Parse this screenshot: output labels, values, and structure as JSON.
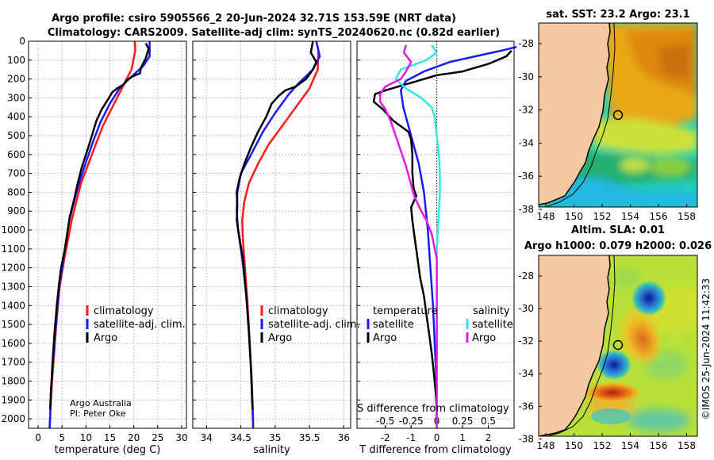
{
  "titles": {
    "line1": "Argo profile: csiro 5905566_2 20-Jun-2024 32.71S 153.59E (NRT data)",
    "line2": "Climatology: CARS2009. Satellite-adj clim: synTS_20240620.nc (0.82d earlier)"
  },
  "colors": {
    "climatology": "#ff1a1a",
    "satellite_adj": "#1a1aff",
    "argo": "#000000",
    "sat_t": "#33e6e6",
    "argo_s": "#e619e6",
    "land": "#f5c8a0"
  },
  "chart_data": [
    {
      "id": "temperature",
      "type": "line",
      "xlabel": "temperature (deg C)",
      "ylabel": "",
      "xlim": [
        -2,
        31
      ],
      "ylim": [
        2050,
        0
      ],
      "xticks": [
        0,
        5,
        10,
        15,
        20,
        25,
        30
      ],
      "xtick_labels": [
        "0",
        "5",
        "10",
        "15",
        "20",
        "25",
        "30"
      ],
      "yticks": [
        0,
        100,
        200,
        300,
        400,
        500,
        600,
        700,
        800,
        900,
        1000,
        1100,
        1200,
        1300,
        1400,
        1500,
        1600,
        1700,
        1800,
        1900,
        2000
      ],
      "ytick_labels": [
        "0",
        "100",
        "200",
        "300",
        "400",
        "500",
        "600",
        "700",
        "800",
        "900",
        "1000",
        "1100",
        "1200",
        "1300",
        "1400",
        "1500",
        "1600",
        "1700",
        "1800",
        "1900",
        "2000"
      ],
      "legend": [
        "climatology",
        "satellite-adj. clim.",
        "Argo"
      ],
      "notes": [
        "Argo Australia",
        "PI: Peter Oke"
      ],
      "series": [
        {
          "name": "climatology",
          "color": "#ff1a1a",
          "points": [
            [
              20.2,
              0
            ],
            [
              20.3,
              50
            ],
            [
              19.5,
              150
            ],
            [
              17.5,
              250
            ],
            [
              15.5,
              350
            ],
            [
              13.5,
              450
            ],
            [
              12,
              550
            ],
            [
              10.5,
              650
            ],
            [
              9,
              750
            ],
            [
              8,
              850
            ],
            [
              7,
              950
            ],
            [
              5.5,
              1150
            ],
            [
              4.5,
              1300
            ],
            [
              3.8,
              1500
            ],
            [
              3.2,
              1700
            ],
            [
              2.8,
              1850
            ],
            [
              2.5,
              2000
            ],
            [
              2.4,
              2050
            ]
          ]
        },
        {
          "name": "satellite-adj. clim.",
          "color": "#1a1aff",
          "points": [
            [
              23.3,
              0
            ],
            [
              23.3,
              80
            ],
            [
              22,
              130
            ],
            [
              19,
              200
            ],
            [
              17,
              250
            ],
            [
              15,
              330
            ],
            [
              13,
              430
            ],
            [
              11.5,
              530
            ],
            [
              10,
              640
            ],
            [
              8.6,
              750
            ],
            [
              7.5,
              850
            ],
            [
              6.5,
              950
            ],
            [
              5.3,
              1150
            ],
            [
              4.4,
              1300
            ],
            [
              3.7,
              1500
            ],
            [
              3.1,
              1700
            ],
            [
              2.7,
              1850
            ],
            [
              2.5,
              2000
            ],
            [
              2.4,
              2050
            ]
          ]
        },
        {
          "name": "Argo",
          "color": "#000000",
          "points": [
            [
              22.5,
              10
            ],
            [
              23.1,
              40
            ],
            [
              22.5,
              90
            ],
            [
              21.5,
              140
            ],
            [
              21.3,
              170
            ],
            [
              20.3,
              180
            ],
            [
              19.5,
              190
            ],
            [
              18.6,
              205
            ],
            [
              17.8,
              230
            ],
            [
              16.5,
              250
            ],
            [
              15.5,
              270
            ],
            [
              14.8,
              300
            ],
            [
              13.3,
              360
            ],
            [
              12.2,
              420
            ],
            [
              11,
              520
            ],
            [
              10,
              600
            ],
            [
              9,
              680
            ],
            [
              8.2,
              760
            ],
            [
              7.6,
              830
            ],
            [
              7.1,
              880
            ],
            [
              6.6,
              930
            ],
            [
              5.6,
              1100
            ],
            [
              4.8,
              1200
            ],
            [
              4.4,
              1280
            ],
            [
              3.9,
              1400
            ],
            [
              3.4,
              1550
            ],
            [
              3,
              1700
            ],
            [
              2.7,
              1850
            ],
            [
              2.5,
              1950
            ]
          ]
        }
      ]
    },
    {
      "id": "salinity",
      "type": "line",
      "xlabel": "salinity",
      "ylabel": "",
      "xlim": [
        33.8,
        36.1
      ],
      "ylim": [
        2050,
        0
      ],
      "xticks": [
        34,
        34.5,
        35,
        35.5,
        36
      ],
      "xtick_labels": [
        "34",
        "34.5",
        "35",
        "35.5",
        "36"
      ],
      "legend": [
        "climatology",
        "satellite-adj. clim.",
        "Argo"
      ],
      "series": [
        {
          "name": "climatology",
          "color": "#ff1a1a",
          "points": [
            [
              35.6,
              0
            ],
            [
              35.63,
              50
            ],
            [
              35.62,
              150
            ],
            [
              35.5,
              250
            ],
            [
              35.3,
              350
            ],
            [
              35.1,
              450
            ],
            [
              34.9,
              550
            ],
            [
              34.75,
              650
            ],
            [
              34.62,
              750
            ],
            [
              34.55,
              850
            ],
            [
              34.52,
              950
            ],
            [
              34.53,
              1050
            ],
            [
              34.56,
              1200
            ],
            [
              34.6,
              1400
            ],
            [
              34.63,
              1600
            ],
            [
              34.66,
              1800
            ],
            [
              34.68,
              2000
            ],
            [
              34.68,
              2050
            ]
          ]
        },
        {
          "name": "satellite-adj. clim.",
          "color": "#1a1aff",
          "points": [
            [
              35.6,
              0
            ],
            [
              35.65,
              80
            ],
            [
              35.55,
              150
            ],
            [
              35.35,
              220
            ],
            [
              35.2,
              280
            ],
            [
              35,
              380
            ],
            [
              34.82,
              480
            ],
            [
              34.65,
              600
            ],
            [
              34.5,
              700
            ],
            [
              34.45,
              800
            ],
            [
              34.44,
              900
            ],
            [
              34.46,
              1000
            ],
            [
              34.52,
              1150
            ],
            [
              34.58,
              1350
            ],
            [
              34.62,
              1550
            ],
            [
              34.65,
              1750
            ],
            [
              34.67,
              1950
            ],
            [
              34.68,
              2050
            ]
          ]
        },
        {
          "name": "Argo",
          "color": "#000000",
          "points": [
            [
              35.55,
              0
            ],
            [
              35.52,
              60
            ],
            [
              35.6,
              110
            ],
            [
              35.55,
              150
            ],
            [
              35.45,
              200
            ],
            [
              35.3,
              240
            ],
            [
              35.15,
              260
            ],
            [
              35.05,
              290
            ],
            [
              34.95,
              330
            ],
            [
              34.87,
              400
            ],
            [
              34.75,
              480
            ],
            [
              34.65,
              560
            ],
            [
              34.55,
              650
            ],
            [
              34.48,
              730
            ],
            [
              34.44,
              800
            ],
            [
              34.45,
              870
            ],
            [
              34.44,
              950
            ],
            [
              34.47,
              1020
            ],
            [
              34.53,
              1150
            ],
            [
              34.58,
              1350
            ],
            [
              34.62,
              1550
            ],
            [
              34.65,
              1750
            ],
            [
              34.67,
              1950
            ]
          ]
        }
      ]
    },
    {
      "id": "difference",
      "type": "line",
      "xlabel": "T difference from climatology",
      "top_label": "S difference from climatology",
      "xlim": [
        -3.1,
        3
      ],
      "ylim": [
        2050,
        0
      ],
      "xticks": [
        -2,
        -1,
        0,
        1,
        2
      ],
      "xtick_labels": [
        "-2",
        "-1",
        "0",
        "1",
        "2"
      ],
      "s_ticks": [
        -0.5,
        -0.25,
        0,
        0.25,
        0.5
      ],
      "s_tick_labels": [
        "-0.5",
        "-0.25",
        "0",
        "0.25",
        "0.5"
      ],
      "legend_headers": [
        "temperature",
        "salinity"
      ],
      "legend_left": [
        "satellite",
        "Argo"
      ],
      "legend_right": [
        "satellite",
        "Argo"
      ],
      "series": [
        {
          "name": "satellite T",
          "color": "#1a1aff",
          "points": [
            [
              3.1,
              30
            ],
            [
              2.5,
              50
            ],
            [
              1.5,
              80
            ],
            [
              0.5,
              110
            ],
            [
              -0.5,
              160
            ],
            [
              -1.2,
              210
            ],
            [
              -1.4,
              260
            ],
            [
              -1.3,
              350
            ],
            [
              -1.1,
              450
            ],
            [
              -0.9,
              550
            ],
            [
              -0.7,
              650
            ],
            [
              -0.5,
              800
            ],
            [
              -0.35,
              1000
            ],
            [
              -0.25,
              1200
            ],
            [
              -0.15,
              1400
            ],
            [
              -0.08,
              1600
            ],
            [
              -0.02,
              1800
            ],
            [
              0,
              2050
            ]
          ]
        },
        {
          "name": "Argo T",
          "color": "#000000",
          "points": [
            [
              2.9,
              50
            ],
            [
              2.7,
              80
            ],
            [
              2,
              120
            ],
            [
              1,
              160
            ],
            [
              0,
              180
            ],
            [
              -1,
              220
            ],
            [
              -2,
              260
            ],
            [
              -2.4,
              280
            ],
            [
              -2.45,
              320
            ],
            [
              -2.1,
              360
            ],
            [
              -1.9,
              390
            ],
            [
              -1.7,
              420
            ],
            [
              -1.4,
              450
            ],
            [
              -1.1,
              480
            ],
            [
              -1,
              520
            ],
            [
              -0.95,
              600
            ],
            [
              -0.95,
              700
            ],
            [
              -0.9,
              780
            ],
            [
              -0.8,
              820
            ],
            [
              -1,
              880
            ],
            [
              -0.95,
              950
            ],
            [
              -0.85,
              1050
            ],
            [
              -0.75,
              1150
            ],
            [
              -0.65,
              1250
            ],
            [
              -0.5,
              1350
            ],
            [
              -0.4,
              1450
            ],
            [
              -0.3,
              1550
            ],
            [
              -0.2,
              1650
            ],
            [
              -0.12,
              1750
            ],
            [
              -0.05,
              1850
            ],
            [
              0,
              1950
            ]
          ]
        },
        {
          "name": "satellite S",
          "color": "#33e6e6",
          "points": [
            [
              -0.05,
              20
            ],
            [
              0,
              60
            ],
            [
              -0.1,
              100
            ],
            [
              -0.35,
              150
            ],
            [
              -0.4,
              200
            ],
            [
              -0.3,
              250
            ],
            [
              -0.15,
              300
            ],
            [
              -0.05,
              350
            ],
            [
              -0.02,
              400
            ],
            [
              0,
              500
            ],
            [
              0.02,
              600
            ],
            [
              0.03,
              700
            ],
            [
              0.03,
              800
            ],
            [
              0.02,
              900
            ],
            [
              0,
              1100
            ],
            [
              0,
              1300
            ],
            [
              0,
              1500
            ],
            [
              0,
              1800
            ],
            [
              0,
              2050
            ]
          ]
        },
        {
          "name": "Argo S",
          "color": "#e619e6",
          "points": [
            [
              -0.3,
              20
            ],
            [
              -0.32,
              60
            ],
            [
              -0.25,
              110
            ],
            [
              -0.3,
              160
            ],
            [
              -0.35,
              200
            ],
            [
              -0.5,
              240
            ],
            [
              -0.55,
              280
            ],
            [
              -0.55,
              320
            ],
            [
              -0.5,
              360
            ],
            [
              -0.45,
              420
            ],
            [
              -0.4,
              500
            ],
            [
              -0.35,
              580
            ],
            [
              -0.3,
              660
            ],
            [
              -0.26,
              740
            ],
            [
              -0.22,
              820
            ],
            [
              -0.15,
              900
            ],
            [
              -0.1,
              950
            ],
            [
              -0.05,
              1020
            ],
            [
              -0.02,
              1100
            ],
            [
              0,
              1150
            ],
            [
              0,
              1300
            ],
            [
              0,
              1500
            ],
            [
              0,
              1700
            ],
            [
              0,
              1900
            ],
            [
              0,
              2050
            ]
          ]
        }
      ]
    }
  ],
  "maps": {
    "sst": {
      "title": "sat. SST: 23.2 Argo: 23.1",
      "lat_ticks": [
        "-28",
        "-30",
        "-32",
        "-34",
        "-36",
        "-38"
      ],
      "lon_ticks": [
        "148",
        "150",
        "152",
        "154",
        "156",
        "158"
      ]
    },
    "sla": {
      "title1": "Altim. SLA: 0.01",
      "title2": "Argo h1000: 0.079 h2000: 0.026",
      "lat_ticks": [
        "-28",
        "-30",
        "-32",
        "-34",
        "-36",
        "-38"
      ],
      "lon_ticks": [
        "148",
        "150",
        "152",
        "154",
        "156",
        "158"
      ]
    },
    "credit": "©IMOS 25-Jun-2024 11:42:33"
  }
}
